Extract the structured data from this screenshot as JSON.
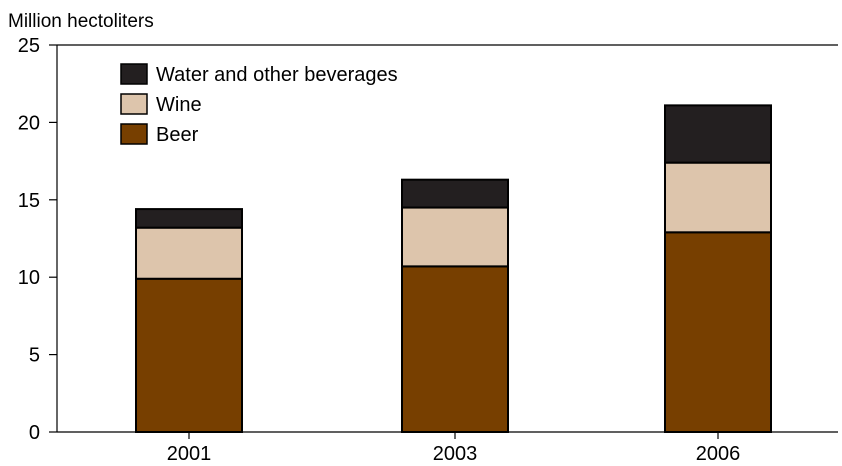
{
  "chart_data": {
    "type": "bar",
    "stacked": true,
    "title": "",
    "ylabel": "Million hectoliters",
    "xlabel": "",
    "categories": [
      "2001",
      "2003",
      "2006"
    ],
    "ylim": [
      0,
      25
    ],
    "yticks": [
      0,
      5,
      10,
      15,
      20,
      25
    ],
    "ytick_labels": [
      "0",
      "5",
      "10",
      "15",
      "20",
      "25"
    ],
    "grid": false,
    "legend_position": "top-left",
    "series": [
      {
        "name": "Beer",
        "color": "#773f00",
        "values": [
          9.9,
          10.7,
          12.9
        ]
      },
      {
        "name": "Wine",
        "color": "#ddc5ac",
        "values": [
          3.3,
          3.8,
          4.5
        ]
      },
      {
        "name": "Water and other beverages",
        "color": "#231f20",
        "values": [
          1.2,
          1.8,
          3.7
        ]
      }
    ],
    "legend_order": [
      "Water and other beverages",
      "Wine",
      "Beer"
    ]
  }
}
